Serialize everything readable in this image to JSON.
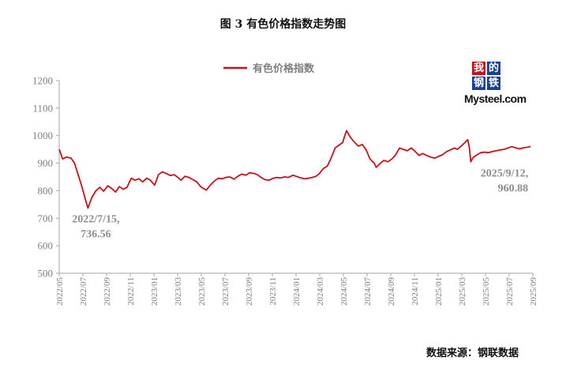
{
  "figure": {
    "title": "图 3  有色价格指数走势图",
    "source": "数据来源：钢联数据"
  },
  "logo": {
    "chars": [
      "我",
      "的",
      "钢",
      "铁"
    ],
    "wordmark": "Mysteel.com",
    "colors": [
      "#c0141b",
      "#1a3f95",
      "#1a3f95",
      "#1a3f95"
    ]
  },
  "chart_data": {
    "type": "line",
    "title": "",
    "xlabel": "",
    "ylabel": "",
    "ylim": [
      500,
      1200
    ],
    "yticks": [
      500,
      600,
      700,
      800,
      900,
      1000,
      1100,
      1200
    ],
    "xticks": [
      "2022/05",
      "2022/07",
      "2022/09",
      "2022/11",
      "2023/01",
      "2023/03",
      "2023/05",
      "2023/07",
      "2023/09",
      "2023/11",
      "2024/01",
      "2024/03",
      "2024/05",
      "2024/07",
      "2024/09",
      "2024/11",
      "2025/01",
      "2025/03",
      "2025/05",
      "2025/07",
      "2025/09"
    ],
    "legend": {
      "position": "top-center"
    },
    "grid": false,
    "color": "#c0141b",
    "series": [
      {
        "name": "有色价格指数",
        "points": [
          [
            "2022-05-01",
            950
          ],
          [
            "2022-05-10",
            915
          ],
          [
            "2022-05-20",
            922
          ],
          [
            "2022-06-01",
            918
          ],
          [
            "2022-06-10",
            900
          ],
          [
            "2022-06-20",
            855
          ],
          [
            "2022-06-28",
            820
          ],
          [
            "2022-07-05",
            785
          ],
          [
            "2022-07-10",
            760
          ],
          [
            "2022-07-15",
            736.56
          ],
          [
            "2022-07-25",
            775
          ],
          [
            "2022-08-05",
            800
          ],
          [
            "2022-08-15",
            812
          ],
          [
            "2022-08-25",
            798
          ],
          [
            "2022-09-05",
            818
          ],
          [
            "2022-09-15",
            808
          ],
          [
            "2022-09-25",
            795
          ],
          [
            "2022-10-05",
            815
          ],
          [
            "2022-10-15",
            805
          ],
          [
            "2022-10-25",
            812
          ],
          [
            "2022-11-05",
            845
          ],
          [
            "2022-11-15",
            838
          ],
          [
            "2022-11-25",
            843
          ],
          [
            "2022-12-05",
            832
          ],
          [
            "2022-12-15",
            845
          ],
          [
            "2022-12-25",
            838
          ],
          [
            "2023-01-05",
            820
          ],
          [
            "2023-01-15",
            858
          ],
          [
            "2023-01-25",
            868
          ],
          [
            "2023-02-05",
            862
          ],
          [
            "2023-02-15",
            855
          ],
          [
            "2023-02-25",
            858
          ],
          [
            "2023-03-05",
            850
          ],
          [
            "2023-03-15",
            838
          ],
          [
            "2023-03-25",
            852
          ],
          [
            "2023-04-05",
            848
          ],
          [
            "2023-04-15",
            840
          ],
          [
            "2023-04-25",
            832
          ],
          [
            "2023-05-05",
            815
          ],
          [
            "2023-05-12",
            808
          ],
          [
            "2023-05-20",
            802
          ],
          [
            "2023-05-30",
            820
          ],
          [
            "2023-06-10",
            835
          ],
          [
            "2023-06-20",
            845
          ],
          [
            "2023-06-30",
            843
          ],
          [
            "2023-07-10",
            848
          ],
          [
            "2023-07-20",
            850
          ],
          [
            "2023-07-31",
            842
          ],
          [
            "2023-08-10",
            852
          ],
          [
            "2023-08-20",
            860
          ],
          [
            "2023-08-31",
            856
          ],
          [
            "2023-09-10",
            865
          ],
          [
            "2023-09-20",
            863
          ],
          [
            "2023-09-30",
            858
          ],
          [
            "2023-10-10",
            848
          ],
          [
            "2023-10-20",
            840
          ],
          [
            "2023-10-31",
            838
          ],
          [
            "2023-11-10",
            845
          ],
          [
            "2023-11-20",
            848
          ],
          [
            "2023-11-30",
            846
          ],
          [
            "2023-12-10",
            850
          ],
          [
            "2023-12-20",
            848
          ],
          [
            "2024-01-01",
            856
          ],
          [
            "2024-01-10",
            852
          ],
          [
            "2024-01-20",
            847
          ],
          [
            "2024-01-31",
            843
          ],
          [
            "2024-02-10",
            845
          ],
          [
            "2024-02-20",
            848
          ],
          [
            "2024-03-01",
            852
          ],
          [
            "2024-03-10",
            862
          ],
          [
            "2024-03-20",
            880
          ],
          [
            "2024-03-31",
            890
          ],
          [
            "2024-04-10",
            920
          ],
          [
            "2024-04-20",
            955
          ],
          [
            "2024-04-30",
            965
          ],
          [
            "2024-05-10",
            975
          ],
          [
            "2024-05-15",
            1000
          ],
          [
            "2024-05-20",
            1018
          ],
          [
            "2024-05-25",
            1005
          ],
          [
            "2024-06-01",
            990
          ],
          [
            "2024-06-10",
            975
          ],
          [
            "2024-06-20",
            962
          ],
          [
            "2024-06-30",
            968
          ],
          [
            "2024-07-10",
            948
          ],
          [
            "2024-07-20",
            915
          ],
          [
            "2024-07-31",
            900
          ],
          [
            "2024-08-05",
            885
          ],
          [
            "2024-08-15",
            898
          ],
          [
            "2024-08-25",
            910
          ],
          [
            "2024-09-05",
            905
          ],
          [
            "2024-09-15",
            915
          ],
          [
            "2024-09-25",
            930
          ],
          [
            "2024-10-05",
            955
          ],
          [
            "2024-10-15",
            950
          ],
          [
            "2024-10-25",
            945
          ],
          [
            "2024-11-05",
            955
          ],
          [
            "2024-11-15",
            942
          ],
          [
            "2024-11-25",
            928
          ],
          [
            "2024-12-05",
            935
          ],
          [
            "2024-12-15",
            928
          ],
          [
            "2024-12-25",
            922
          ],
          [
            "2025-01-05",
            918
          ],
          [
            "2025-01-15",
            925
          ],
          [
            "2025-01-25",
            930
          ],
          [
            "2025-02-05",
            942
          ],
          [
            "2025-02-15",
            948
          ],
          [
            "2025-02-25",
            955
          ],
          [
            "2025-03-05",
            950
          ],
          [
            "2025-03-15",
            962
          ],
          [
            "2025-03-25",
            975
          ],
          [
            "2025-04-01",
            985
          ],
          [
            "2025-04-05",
            960
          ],
          [
            "2025-04-09",
            905
          ],
          [
            "2025-04-15",
            920
          ],
          [
            "2025-04-25",
            930
          ],
          [
            "2025-05-05",
            938
          ],
          [
            "2025-05-15",
            940
          ],
          [
            "2025-05-25",
            938
          ],
          [
            "2025-06-05",
            942
          ],
          [
            "2025-06-15",
            945
          ],
          [
            "2025-06-25",
            948
          ],
          [
            "2025-07-05",
            950
          ],
          [
            "2025-07-15",
            955
          ],
          [
            "2025-07-25",
            960
          ],
          [
            "2025-08-05",
            955
          ],
          [
            "2025-08-15",
            952
          ],
          [
            "2025-08-25",
            956
          ],
          [
            "2025-09-05",
            958
          ],
          [
            "2025-09-12",
            960.88
          ]
        ]
      }
    ],
    "annotations": [
      {
        "line1": "2022/7/15,",
        "line2": "736.56",
        "date": "2022-07-15",
        "value": 736.56
      },
      {
        "line1": "2025/9/12,",
        "line2": "960.88",
        "date": "2025-09-12",
        "value": 960.88
      }
    ]
  }
}
